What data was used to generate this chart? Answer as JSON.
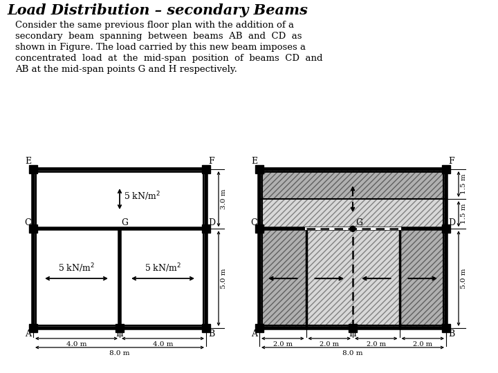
{
  "title": "Load Distribution – secondary Beams",
  "text_lines": [
    "Consider the same previous floor plan with the addition of a",
    "secondary  beam  spanning  between  beams  AB  and  CD  as",
    "shown in Figure. The load carried by this new beam imposes a",
    "concentrated  load  at  the  mid-span  position  of  beams  CD  and",
    "AB at the mid-span points G and H respectively."
  ],
  "bg_color": "#ffffff",
  "title_fontsize": 15,
  "body_fontsize": 9.5,
  "diagram_lw": 4.0,
  "inner_lw": 1.5,
  "hatch_dark": "////",
  "hatch_light": "////",
  "dark_face": "#b0b0b0",
  "light_face": "#d8d8d8"
}
